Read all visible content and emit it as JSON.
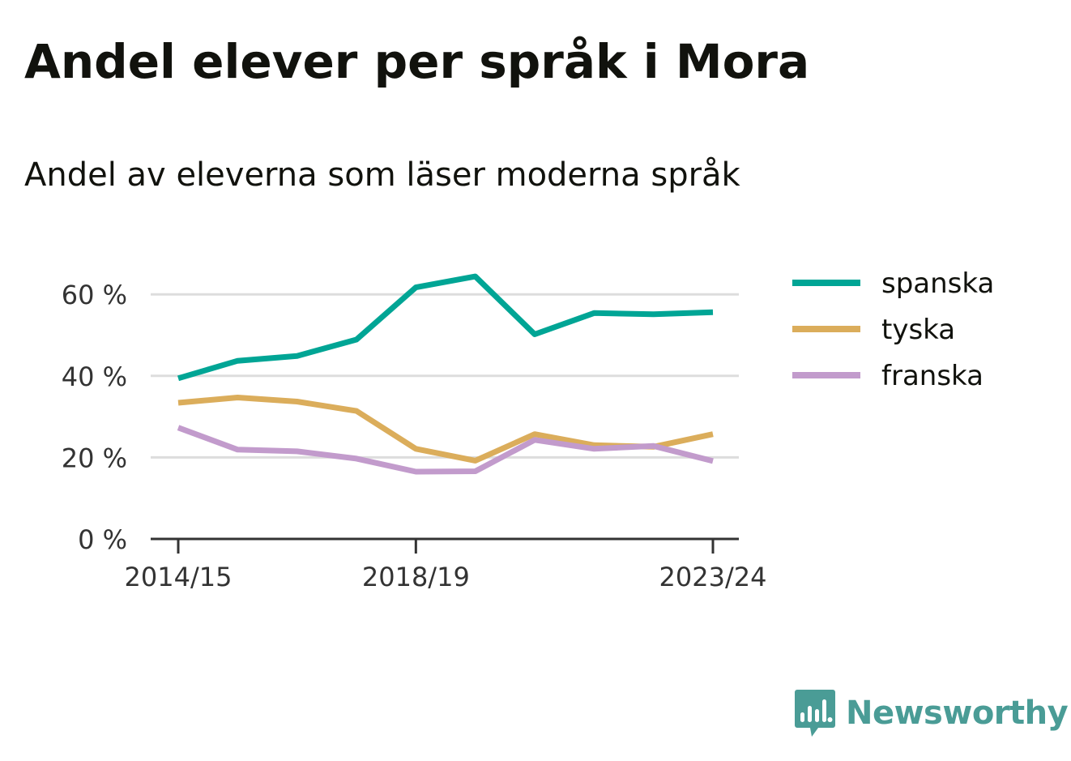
{
  "chart_data": {
    "type": "line",
    "title": "Andel elever per språk i Mora",
    "subtitle": "Andel av eleverna som läser moderna språk",
    "xlabel": "",
    "ylabel": "",
    "x": [
      "2014/15",
      "2015/16",
      "2016/17",
      "2017/18",
      "2018/19",
      "2019/20",
      "2020/21",
      "2021/22",
      "2022/23",
      "2023/24"
    ],
    "x_tick_labels": [
      "2014/15",
      "2018/19",
      "2023/24"
    ],
    "y_tick_labels": [
      "0 %",
      "20 %",
      "40 %",
      "60 %"
    ],
    "y_ticks": [
      0,
      20,
      40,
      60
    ],
    "ylim": [
      0,
      70
    ],
    "grid": true,
    "legend_position": "right",
    "series": [
      {
        "name": "spanska",
        "color": "#00a595",
        "values": [
          39.4,
          43.7,
          44.9,
          48.9,
          61.7,
          64.4,
          50.2,
          55.4,
          55.1,
          55.6
        ]
      },
      {
        "name": "tyska",
        "color": "#dbad5b",
        "values": [
          33.4,
          34.7,
          33.7,
          31.4,
          22.1,
          19.2,
          25.7,
          23.0,
          22.6,
          25.7
        ]
      },
      {
        "name": "franska",
        "color": "#c29bcc",
        "values": [
          27.3,
          21.9,
          21.5,
          19.7,
          16.5,
          16.6,
          24.3,
          22.1,
          22.8,
          19.1
        ]
      }
    ]
  },
  "branding": {
    "logo_text": "Newsworthy",
    "logo_color": "#4a9c96",
    "logo_icon": "bar-chart-speech-bubble-icon"
  }
}
